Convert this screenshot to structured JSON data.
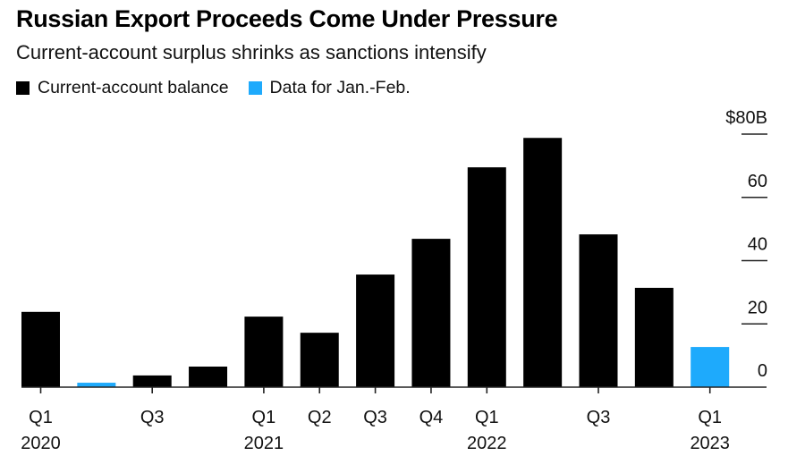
{
  "chart_data": {
    "type": "bar",
    "title": "Russian Export Proceeds Come Under Pressure",
    "subtitle": "Current-account surplus shrinks as sanctions intensify",
    "xlabel": "",
    "ylabel": "",
    "ylim": [
      0,
      80
    ],
    "y_ticks": [
      {
        "value": 80,
        "label": "$80B"
      },
      {
        "value": 60,
        "label": "60"
      },
      {
        "value": 40,
        "label": "40"
      },
      {
        "value": 20,
        "label": "20"
      },
      {
        "value": 0,
        "label": "0"
      }
    ],
    "y_axis_position": "right",
    "grid": false,
    "legend_position": "top-left",
    "legend": [
      {
        "label": "Current-account balance",
        "color": "#000000"
      },
      {
        "label": "Data for Jan.-Feb.",
        "color": "#1eaafc"
      }
    ],
    "categories": [
      "Q1 2020",
      "Q2 2020",
      "Q3 2020",
      "Q4 2020",
      "Q1 2021",
      "Q2 2021",
      "Q3 2021",
      "Q4 2021",
      "Q1 2022",
      "Q2 2022",
      "Q3 2022",
      "Q4 2022",
      "Q1 2023"
    ],
    "x_tick_labels": [
      {
        "index": 0,
        "quarter": "Q1",
        "year": "2020"
      },
      {
        "index": 2,
        "quarter": "Q3",
        "year": ""
      },
      {
        "index": 4,
        "quarter": "Q1",
        "year": "2021"
      },
      {
        "index": 5,
        "quarter": "Q2",
        "year": ""
      },
      {
        "index": 6,
        "quarter": "Q3",
        "year": ""
      },
      {
        "index": 7,
        "quarter": "Q4",
        "year": ""
      },
      {
        "index": 8,
        "quarter": "Q1",
        "year": "2022"
      },
      {
        "index": 10,
        "quarter": "Q3",
        "year": ""
      },
      {
        "index": 12,
        "quarter": "Q1",
        "year": "2023"
      }
    ],
    "values": [
      23.8,
      1.4,
      3.7,
      6.5,
      22.3,
      17.2,
      35.6,
      46.9,
      69.5,
      78.8,
      48.3,
      31.4,
      12.7
    ],
    "bar_series": [
      0,
      1,
      0,
      0,
      0,
      0,
      0,
      0,
      0,
      0,
      0,
      0,
      1
    ]
  }
}
